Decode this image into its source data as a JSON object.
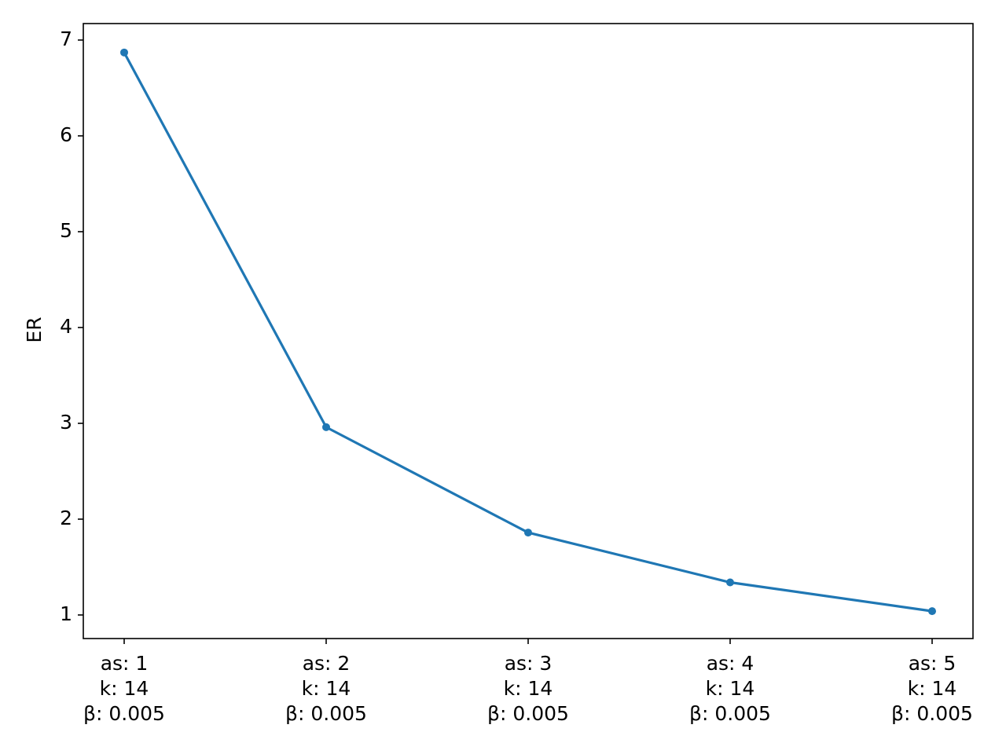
{
  "chart_data": {
    "type": "line",
    "ylabel": "ER",
    "categories": [
      [
        "as: 1",
        "k: 14",
        "β: 0.005"
      ],
      [
        "as: 2",
        "k: 14",
        "β: 0.005"
      ],
      [
        "as: 3",
        "k: 14",
        "β: 0.005"
      ],
      [
        "as: 4",
        "k: 14",
        "β: 0.005"
      ],
      [
        "as: 5",
        "k: 14",
        "β: 0.005"
      ]
    ],
    "series": [
      {
        "color": "#1f77b4",
        "values": [
          6.87,
          2.96,
          1.86,
          1.34,
          1.04
        ]
      }
    ],
    "ylim": [
      0.754,
      7.172
    ],
    "yticks": [
      1,
      2,
      3,
      4,
      5,
      6,
      7
    ],
    "grid": false
  }
}
